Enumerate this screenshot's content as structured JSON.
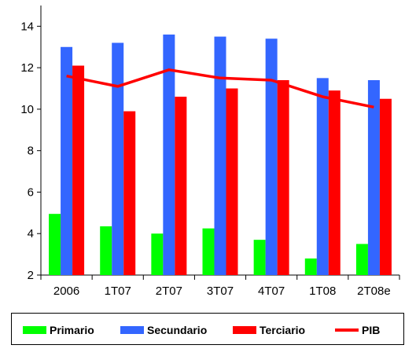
{
  "chart_data": {
    "type": "bar",
    "categories": [
      "2006",
      "1T07",
      "2T07",
      "3T07",
      "4T07",
      "1T08",
      "2T08e"
    ],
    "ylim": [
      2,
      15
    ],
    "yticks": [
      2,
      4,
      6,
      8,
      10,
      12,
      14
    ],
    "series": [
      {
        "name": "Primario",
        "type": "bar",
        "color": "#00ff00",
        "values": [
          4.95,
          4.35,
          4.0,
          4.25,
          3.7,
          2.8,
          3.5
        ]
      },
      {
        "name": "Secundario",
        "type": "bar",
        "color": "#3366ff",
        "values": [
          13.0,
          13.2,
          13.6,
          13.5,
          13.4,
          11.5,
          11.4
        ]
      },
      {
        "name": "Terciario",
        "type": "bar",
        "color": "#ff0000",
        "values": [
          12.1,
          9.9,
          10.6,
          11.0,
          11.4,
          10.9,
          10.5
        ]
      },
      {
        "name": "PIB",
        "type": "line",
        "color": "#ff0000",
        "values": [
          11.6,
          11.1,
          11.9,
          11.5,
          11.4,
          10.6,
          10.1
        ]
      }
    ],
    "grid": false,
    "legend_position": "bottom"
  }
}
